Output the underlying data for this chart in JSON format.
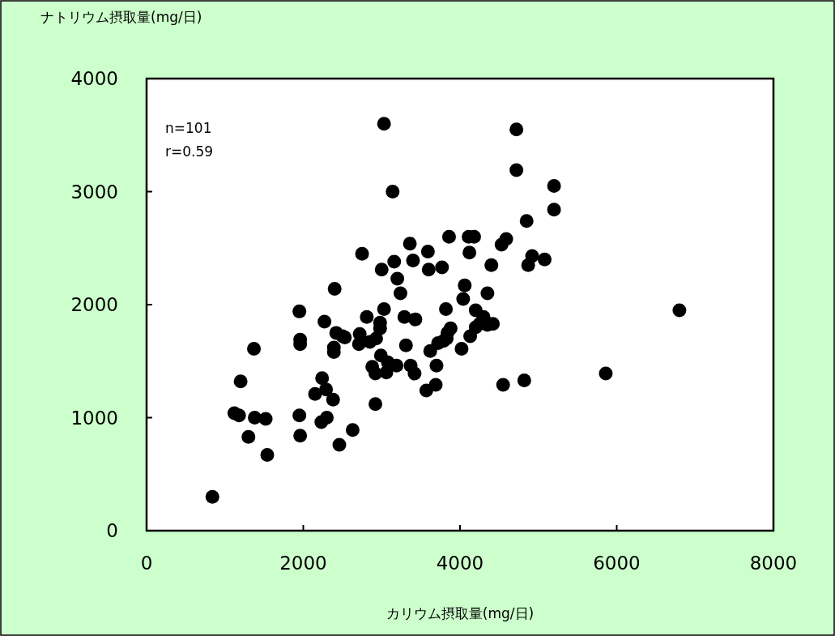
{
  "chart_data": {
    "type": "scatter",
    "xlabel": "カリウム摂取量(mg/日)",
    "ylabel": "ナトリウム摂取量(mg/日)",
    "annotations": [
      "n=101",
      "r=0.59"
    ],
    "xlim": [
      0,
      8000
    ],
    "xticks": [
      0,
      2000,
      4000,
      6000,
      8000
    ],
    "ylim": [
      0,
      4000
    ],
    "yticks": [
      0,
      1000,
      2000,
      3000,
      4000
    ],
    "grid": false,
    "marker": "circle",
    "series": [
      {
        "color": "#000000",
        "x": [
          840,
          1200,
          1120,
          1180,
          1300,
          1370,
          1380,
          1520,
          1540,
          1950,
          1960,
          1960,
          1950,
          1960,
          2150,
          2240,
          2230,
          2270,
          2290,
          2300,
          2380,
          2390,
          2390,
          2400,
          2420,
          2460,
          2500,
          2530,
          2630,
          2720,
          2710,
          2750,
          2810,
          2850,
          2880,
          2920,
          2920,
          2930,
          2980,
          2980,
          2990,
          3000,
          3030,
          3030,
          3060,
          3080,
          3140,
          3160,
          3190,
          3200,
          3240,
          3290,
          3310,
          3360,
          3370,
          3400,
          3420,
          3430,
          3570,
          3590,
          3600,
          3620,
          3690,
          3700,
          3720,
          3770,
          3790,
          3820,
          3830,
          3840,
          3860,
          3880,
          4020,
          4040,
          4060,
          4110,
          4120,
          4130,
          4180,
          4200,
          4200,
          4250,
          4300,
          4350,
          4350,
          4400,
          4420,
          4530,
          4550,
          4590,
          4720,
          4720,
          4820,
          4850,
          4870,
          4920,
          5080,
          5200,
          5200,
          5860,
          6800
        ],
        "values": [
          300,
          1320,
          1040,
          1020,
          830,
          1610,
          1000,
          990,
          670,
          1940,
          1690,
          1650,
          1020,
          840,
          1210,
          1350,
          960,
          1850,
          1250,
          1000,
          1160,
          1620,
          1580,
          2140,
          1750,
          760,
          1720,
          1710,
          890,
          1740,
          1650,
          2450,
          1890,
          1670,
          1450,
          1120,
          1390,
          1700,
          1840,
          1790,
          1550,
          2310,
          1960,
          3600,
          1400,
          1490,
          3000,
          2380,
          1460,
          2230,
          2100,
          1890,
          1640,
          2540,
          1460,
          2390,
          1390,
          1870,
          1240,
          2470,
          2310,
          1590,
          1290,
          1460,
          1660,
          2330,
          1680,
          1960,
          1700,
          1750,
          2600,
          1790,
          1610,
          2050,
          2170,
          2600,
          2460,
          1720,
          2600,
          1950,
          1800,
          1830,
          1890,
          2100,
          1820,
          2350,
          1830,
          2530,
          1290,
          2580,
          3550,
          3190,
          1330,
          2740,
          2350,
          2430,
          2400,
          3050,
          2840,
          1390,
          1950
        ]
      }
    ]
  }
}
